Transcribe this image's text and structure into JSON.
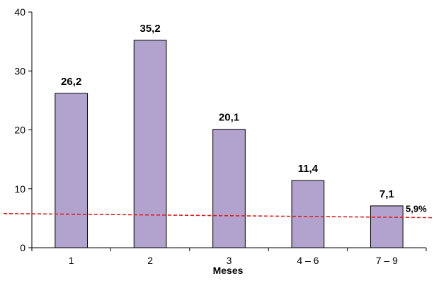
{
  "chart_data": {
    "type": "bar",
    "categories": [
      "1",
      "2",
      "3",
      "4 – 6",
      "7 – 9"
    ],
    "values": [
      26.2,
      35.2,
      20.1,
      11.4,
      7.1
    ],
    "value_labels": [
      "26,2",
      "35,2",
      "20,1",
      "11,4",
      "7,1"
    ],
    "xlabel": "Meses",
    "ylabel": "",
    "ylim": [
      0,
      40
    ],
    "yticks": [
      0,
      10,
      20,
      30,
      40
    ],
    "grid": false,
    "colors": {
      "bar_fill": "#b1a3cd",
      "bar_stroke": "#000000",
      "reference_line": "#e31a1c"
    },
    "reference_line": {
      "style": "dashed",
      "label": "5,9%",
      "y_start": 5.8,
      "y_end": 5.1
    }
  }
}
